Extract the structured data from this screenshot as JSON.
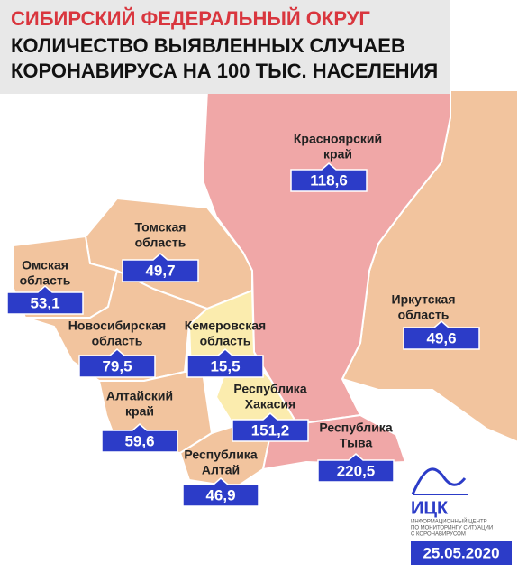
{
  "header": {
    "title": "СИБИРСКИЙ ФЕДЕРАЛЬНЫЙ ОКРУГ",
    "subtitle_lines": [
      "КОЛИЧЕСТВО ВЫЯВЛЕННЫХ СЛУЧАЕВ",
      "КОРОНАВИРУСА НА 100 ТЫС. НАСЕЛЕНИЯ"
    ]
  },
  "regions": [
    {
      "name_lines": [
        "Красноярский",
        "край"
      ],
      "value": "118,6"
    },
    {
      "name_lines": [
        "Томская",
        "область"
      ],
      "value": "49,7"
    },
    {
      "name_lines": [
        "Омская",
        "область"
      ],
      "value": "53,1"
    },
    {
      "name_lines": [
        "Новосибирская",
        "область"
      ],
      "value": "79,5"
    },
    {
      "name_lines": [
        "Кемеровская",
        "область"
      ],
      "value": "15,5"
    },
    {
      "name_lines": [
        "Иркутская",
        "область"
      ],
      "value": "49,6"
    },
    {
      "name_lines": [
        "Алтайский",
        "край"
      ],
      "value": "59,6"
    },
    {
      "name_lines": [
        "Республика",
        "Хакасия"
      ],
      "value": "151,2"
    },
    {
      "name_lines": [
        "Республика",
        "Алтай"
      ],
      "value": "46,9"
    },
    {
      "name_lines": [
        "Республика",
        "Тыва"
      ],
      "value": "220,5"
    }
  ],
  "logo": {
    "name": "ИЦК",
    "lines": [
      "ИНФОРМАЦИОННЫЙ ЦЕНТР",
      "ПО МОНИТОРИНГУ СИТУАЦИИ",
      "С КОРОНАВИРУСОМ"
    ]
  },
  "date": "25.05.2020"
}
